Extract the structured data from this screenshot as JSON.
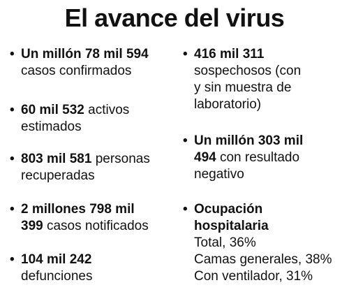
{
  "title": "El avance del virus",
  "left": [
    {
      "bold": "Un millón 78 mil 594",
      "text_inline": "",
      "text_next": "casos confirmados"
    },
    {
      "bold": "60 mil 532",
      "text_inline": " activos",
      "text_next": "estimados"
    },
    {
      "bold": "803 mil 581",
      "text_inline": " personas",
      "text_next": "recuperadas"
    },
    {
      "bold": "2 millones 798 mil",
      "bold2": "399",
      "text_inline": "",
      "text_next": " casos notificados"
    },
    {
      "bold": "104 mil 242",
      "text_inline": "",
      "text_next": "defunciones"
    }
  ],
  "right": [
    {
      "bold": "416 mil 311",
      "lines": [
        "sospechosos (con",
        "y sin muestra de",
        "laboratorio)"
      ]
    },
    {
      "bold": "Un millón 303 mil",
      "bold2": "494",
      "text_next": " con resultado",
      "lines": [
        "negativo"
      ]
    },
    {
      "bold": "Ocupación",
      "bold_line2": "hospitalaria",
      "lines": [
        "Total, 36%",
        "Camas generales, 38%",
        "Con ventilador, 31%"
      ]
    }
  ],
  "bullet": "•"
}
